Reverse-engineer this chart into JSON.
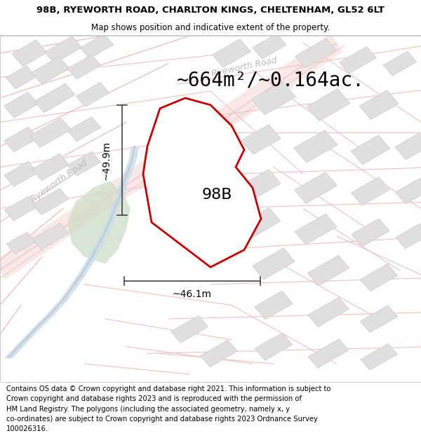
{
  "title_line1": "98B, RYEWORTH ROAD, CHARLTON KINGS, CHELTENHAM, GL52 6LT",
  "title_line2": "Map shows position and indicative extent of the property.",
  "area_label": "~664m²/~0.164ac.",
  "label_98B": "98B",
  "dim_vertical": "~49.9m",
  "dim_horizontal": "~46.1m",
  "road_label_1": "Ryeworth Road",
  "road_label_2": "Ryeworth Road",
  "footer_lines": [
    "Contains OS data © Crown copyright and database right 2021. This information is subject to",
    "Crown copyright and database rights 2023 and is reproduced with the permission of",
    "HM Land Registry. The polygons (including the associated geometry, namely x, y",
    "co-ordinates) are subject to Crown copyright and database rights 2023 Ordnance Survey",
    "100026316."
  ],
  "bg_color": "#ffffff",
  "map_bg": "#f9f8f6",
  "road_color_main": "#f5c8c8",
  "road_color_thin": "#f0c0c0",
  "property_fill": "#ffffff",
  "property_edge": "#cc0000",
  "building_fill": "#e0dede",
  "building_edge": "#cccccc",
  "green_fill": "#d0ddc8",
  "water_fill": "#ccdce8",
  "dim_color": "#444444",
  "road_label_color": "#bbbbbb",
  "title_fontsize": 9.5,
  "subtitle_fontsize": 8.5,
  "area_fontsize": 20,
  "dim_fontsize": 10,
  "label_98B_fontsize": 16,
  "footer_fontsize": 7.2,
  "road_label_fontsize": 9
}
